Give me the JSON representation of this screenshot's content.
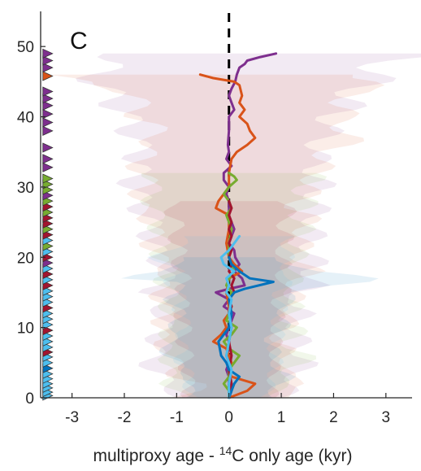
{
  "chart_data": {
    "type": "line",
    "panel_label": "C",
    "xlabel": {
      "prefix": "multiproxy age - ",
      "superscript": "14",
      "suffix": "C only age (kyr)"
    },
    "ylabel": "",
    "xlim": [
      -3.6,
      3.5
    ],
    "ylim": [
      0,
      55
    ],
    "xticks": [
      -3,
      -2,
      -1,
      0,
      1,
      2,
      3
    ],
    "yticks": [
      0,
      10,
      20,
      30,
      40,
      50
    ],
    "grid": false,
    "reference_line": {
      "x": 0,
      "style": "dashed",
      "color": "#000000"
    },
    "colors": {
      "blue": "#0072BD",
      "orange": "#D95319",
      "green": "#77AC30",
      "purple": "#7E2F8E",
      "red": "#A2142F",
      "cyan": "#4DBEEE"
    },
    "series": [
      {
        "color": "#7E2F8E",
        "points": [
          [
            0.9,
            49
          ],
          [
            0.6,
            48.5
          ],
          [
            0.35,
            48
          ],
          [
            0.3,
            47.5
          ],
          [
            0.2,
            47
          ],
          [
            0.15,
            46
          ],
          [
            0.12,
            45
          ],
          [
            0.05,
            44
          ],
          [
            0.0,
            43
          ],
          [
            0.05,
            42
          ],
          [
            0.1,
            41
          ],
          [
            0.0,
            40
          ],
          [
            0.0,
            38
          ],
          [
            -0.02,
            36
          ],
          [
            0.0,
            35
          ],
          [
            -0.05,
            34
          ],
          [
            0.05,
            33
          ],
          [
            -0.1,
            32
          ],
          [
            -0.1,
            31
          ],
          [
            0.0,
            30
          ],
          [
            -0.05,
            29
          ],
          [
            0.0,
            28
          ],
          [
            0.0,
            26
          ],
          [
            0.05,
            25
          ],
          [
            0.1,
            24
          ],
          [
            0.05,
            23
          ],
          [
            0.0,
            22
          ],
          [
            0.1,
            21
          ],
          [
            0.12,
            20
          ],
          [
            0.2,
            19
          ],
          [
            0.1,
            18
          ],
          [
            0.25,
            17
          ],
          [
            0.3,
            16
          ],
          [
            0.0,
            15.5
          ],
          [
            -0.25,
            15
          ],
          [
            0.0,
            14
          ],
          [
            -0.1,
            13
          ],
          [
            0.1,
            12
          ],
          [
            0.05,
            11
          ],
          [
            0.0,
            10
          ],
          [
            -0.05,
            9
          ],
          [
            0.0,
            8
          ],
          [
            0.0,
            7
          ],
          [
            -0.05,
            6
          ],
          [
            0.0,
            5
          ],
          [
            -0.05,
            4
          ],
          [
            0.0,
            3
          ],
          [
            0.0,
            2
          ],
          [
            0.05,
            1
          ],
          [
            0.0,
            0
          ]
        ],
        "band": {
          "color": "#7E2F8E",
          "ylim": [
            0,
            49
          ],
          "half_width": [
            [
              0,
              1.0
            ],
            [
              5,
              1.5
            ],
            [
              10,
              1.3
            ],
            [
              15,
              1.4
            ],
            [
              20,
              1.5
            ],
            [
              25,
              1.6
            ],
            [
              30,
              1.8
            ],
            [
              35,
              1.7
            ],
            [
              40,
              2.0
            ],
            [
              45,
              2.6
            ],
            [
              49,
              2.8
            ]
          ]
        }
      },
      {
        "color": "#D95319",
        "points": [
          [
            -0.55,
            46
          ],
          [
            -0.3,
            45.5
          ],
          [
            0.1,
            45
          ],
          [
            0.2,
            44.5
          ],
          [
            0.25,
            43
          ],
          [
            0.2,
            42
          ],
          [
            0.3,
            41
          ],
          [
            0.2,
            40
          ],
          [
            0.35,
            39
          ],
          [
            0.4,
            38
          ],
          [
            0.5,
            37
          ],
          [
            0.35,
            36
          ],
          [
            0.15,
            35
          ],
          [
            0.05,
            34
          ],
          [
            0.0,
            32
          ],
          [
            0.0,
            30
          ],
          [
            -0.1,
            29
          ],
          [
            -0.2,
            28
          ],
          [
            -0.25,
            27
          ],
          [
            0.0,
            26
          ],
          [
            0.0,
            24
          ],
          [
            -0.05,
            22
          ],
          [
            0.0,
            20
          ],
          [
            0.1,
            19
          ],
          [
            0.25,
            18
          ],
          [
            0.0,
            17
          ],
          [
            -0.05,
            15
          ],
          [
            0.0,
            13
          ],
          [
            0.0,
            12
          ],
          [
            -0.1,
            11
          ],
          [
            -0.05,
            10
          ],
          [
            -0.15,
            9
          ],
          [
            -0.3,
            8
          ],
          [
            -0.05,
            7
          ],
          [
            0.0,
            6
          ],
          [
            0.05,
            5
          ],
          [
            0.0,
            4
          ],
          [
            0.05,
            3
          ],
          [
            0.5,
            2
          ],
          [
            0.35,
            1
          ],
          [
            0.0,
            0
          ]
        ],
        "band": {
          "color": "#D95319",
          "ylim": [
            0,
            46
          ],
          "half_width": [
            [
              0,
              1.0
            ],
            [
              5,
              1.1
            ],
            [
              10,
              1.2
            ],
            [
              15,
              1.3
            ],
            [
              20,
              1.4
            ],
            [
              25,
              1.5
            ],
            [
              30,
              1.6
            ],
            [
              35,
              1.8
            ],
            [
              40,
              1.9
            ],
            [
              44,
              2.2
            ],
            [
              46,
              3.5
            ]
          ]
        }
      },
      {
        "color": "#77AC30",
        "points": [
          [
            0.0,
            32
          ],
          [
            0.1,
            31.5
          ],
          [
            0.15,
            31
          ],
          [
            0.0,
            30
          ],
          [
            -0.1,
            29
          ],
          [
            0.0,
            28
          ],
          [
            0.05,
            27
          ],
          [
            -0.05,
            26
          ],
          [
            0.0,
            25
          ],
          [
            0.05,
            24
          ],
          [
            0.0,
            22
          ],
          [
            0.0,
            20
          ],
          [
            0.05,
            19
          ],
          [
            0.1,
            18
          ],
          [
            0.0,
            17
          ],
          [
            -0.05,
            16
          ],
          [
            0.05,
            15
          ],
          [
            0.0,
            14
          ],
          [
            0.05,
            13
          ],
          [
            0.0,
            12
          ],
          [
            -0.05,
            11
          ],
          [
            0.15,
            10
          ],
          [
            0.05,
            9
          ],
          [
            -0.1,
            8
          ],
          [
            0.0,
            7
          ],
          [
            0.2,
            6
          ],
          [
            0.1,
            5
          ],
          [
            0.0,
            4
          ],
          [
            0.0,
            3
          ],
          [
            -0.1,
            2
          ],
          [
            0.0,
            1
          ],
          [
            0.0,
            0
          ]
        ],
        "band": {
          "color": "#77AC30",
          "ylim": [
            0,
            32
          ],
          "half_width": [
            [
              0,
              0.9
            ],
            [
              5,
              1.3
            ],
            [
              10,
              1.2
            ],
            [
              15,
              1.2
            ],
            [
              20,
              1.3
            ],
            [
              25,
              1.4
            ],
            [
              30,
              1.5
            ],
            [
              32,
              1.5
            ]
          ]
        }
      },
      {
        "color": "#A2142F",
        "points": [
          [
            0.0,
            28
          ],
          [
            0.05,
            27
          ],
          [
            0.0,
            26
          ],
          [
            0.05,
            25
          ],
          [
            0.0,
            24
          ],
          [
            0.05,
            23
          ],
          [
            0.0,
            22
          ],
          [
            0.05,
            21
          ],
          [
            0.0,
            20
          ],
          [
            0.05,
            19
          ],
          [
            0.0,
            18
          ],
          [
            0.1,
            17
          ],
          [
            0.05,
            16
          ],
          [
            0.1,
            15
          ],
          [
            0.0,
            14
          ],
          [
            0.05,
            13
          ],
          [
            0.0,
            12
          ],
          [
            0.05,
            10
          ],
          [
            0.0,
            8
          ],
          [
            0.05,
            6
          ],
          [
            0.0,
            4
          ],
          [
            0.05,
            2
          ],
          [
            0.0,
            0
          ]
        ],
        "band": {
          "color": "#A2142F",
          "ylim": [
            0,
            28
          ],
          "half_width": [
            [
              0,
              0.8
            ],
            [
              10,
              0.9
            ],
            [
              20,
              1.0
            ],
            [
              28,
              1.1
            ]
          ]
        }
      },
      {
        "color": "#0072BD",
        "points": [
          [
            0.0,
            20
          ],
          [
            0.05,
            19
          ],
          [
            0.2,
            18
          ],
          [
            0.4,
            17
          ],
          [
            0.85,
            16.5
          ],
          [
            0.3,
            15.5
          ],
          [
            0.1,
            15
          ],
          [
            0.0,
            14
          ],
          [
            0.05,
            12
          ],
          [
            0.0,
            10
          ],
          [
            -0.1,
            9
          ],
          [
            -0.2,
            8
          ],
          [
            -0.15,
            6
          ],
          [
            -0.05,
            5
          ],
          [
            0.0,
            4
          ],
          [
            0.2,
            3
          ],
          [
            0.1,
            2
          ],
          [
            0.05,
            1
          ],
          [
            0.0,
            0
          ]
        ],
        "band": {
          "color": "#0072BD",
          "ylim": [
            0,
            20
          ],
          "half_width": [
            [
              0,
              0.8
            ],
            [
              5,
              1.0
            ],
            [
              10,
              1.0
            ],
            [
              15,
              1.1
            ],
            [
              17,
              2.3
            ],
            [
              18,
              1.3
            ],
            [
              20,
              1.0
            ]
          ]
        }
      },
      {
        "color": "#4DBEEE",
        "points": [
          [
            0.2,
            23
          ],
          [
            0.1,
            22
          ],
          [
            0.0,
            21
          ],
          [
            -0.15,
            20
          ],
          [
            -0.1,
            19
          ],
          [
            0.1,
            18
          ],
          [
            -0.05,
            17
          ],
          [
            0.0,
            16
          ],
          [
            -0.05,
            15
          ],
          [
            0.05,
            14
          ],
          [
            0.0,
            12
          ],
          [
            0.05,
            10
          ],
          [
            0.0,
            8
          ],
          [
            -0.05,
            6
          ],
          [
            0.05,
            4
          ],
          [
            0.0,
            2
          ],
          [
            0.0,
            0
          ]
        ],
        "band": {
          "color": "#4DBEEE",
          "ylim": [
            0,
            23
          ],
          "half_width": [
            [
              0,
              0.7
            ],
            [
              5,
              0.9
            ],
            [
              10,
              0.9
            ],
            [
              15,
              1.0
            ],
            [
              20,
              1.2
            ],
            [
              23,
              1.0
            ]
          ]
        }
      }
    ],
    "markers": {
      "x": -3.48,
      "shape": "right-pointing triangle",
      "points": [
        [
          0.3,
          "#4DBEEE"
        ],
        [
          0.8,
          "#4DBEEE"
        ],
        [
          1.4,
          "#4DBEEE"
        ],
        [
          2.0,
          "#4DBEEE"
        ],
        [
          2.7,
          "#4DBEEE"
        ],
        [
          3.4,
          "#4DBEEE"
        ],
        [
          4.2,
          "#0072BD"
        ],
        [
          5.0,
          "#4DBEEE"
        ],
        [
          5.8,
          "#4DBEEE"
        ],
        [
          6.5,
          "#A2142F"
        ],
        [
          7.2,
          "#4DBEEE"
        ],
        [
          8.0,
          "#4DBEEE"
        ],
        [
          8.8,
          "#4DBEEE"
        ],
        [
          9.6,
          "#A2142F"
        ],
        [
          10.4,
          "#4DBEEE"
        ],
        [
          11.2,
          "#4DBEEE"
        ],
        [
          12.0,
          "#4DBEEE"
        ],
        [
          12.8,
          "#A2142F"
        ],
        [
          13.6,
          "#4DBEEE"
        ],
        [
          14.4,
          "#4DBEEE"
        ],
        [
          15.2,
          "#4DBEEE"
        ],
        [
          16.0,
          "#A2142F"
        ],
        [
          16.8,
          "#4DBEEE"
        ],
        [
          17.6,
          "#A2142F"
        ],
        [
          18.4,
          "#4DBEEE"
        ],
        [
          19.2,
          "#7E2F8E"
        ],
        [
          20.0,
          "#A2142F"
        ],
        [
          20.8,
          "#4DBEEE"
        ],
        [
          21.6,
          "#77AC30"
        ],
        [
          22.4,
          "#4DBEEE"
        ],
        [
          23.2,
          "#A2142F"
        ],
        [
          24.0,
          "#77AC30"
        ],
        [
          24.8,
          "#A2142F"
        ],
        [
          25.6,
          "#A2142F"
        ],
        [
          26.4,
          "#77AC30"
        ],
        [
          27.2,
          "#A2142F"
        ],
        [
          28.0,
          "#77AC30"
        ],
        [
          28.8,
          "#7E2F8E"
        ],
        [
          29.6,
          "#77AC30"
        ],
        [
          30.4,
          "#77AC30"
        ],
        [
          31.2,
          "#77AC30"
        ],
        [
          32.8,
          "#7E2F8E"
        ],
        [
          34.0,
          "#7E2F8E"
        ],
        [
          35.6,
          "#7E2F8E"
        ],
        [
          38.0,
          "#7E2F8E"
        ],
        [
          39.2,
          "#7E2F8E"
        ],
        [
          40.4,
          "#7E2F8E"
        ],
        [
          41.6,
          "#7E2F8E"
        ],
        [
          42.6,
          "#7E2F8E"
        ],
        [
          43.6,
          "#7E2F8E"
        ],
        [
          45.8,
          "#D95319"
        ],
        [
          47.0,
          "#7E2F8E"
        ],
        [
          48.0,
          "#7E2F8E"
        ],
        [
          49.0,
          "#7E2F8E"
        ]
      ]
    }
  }
}
